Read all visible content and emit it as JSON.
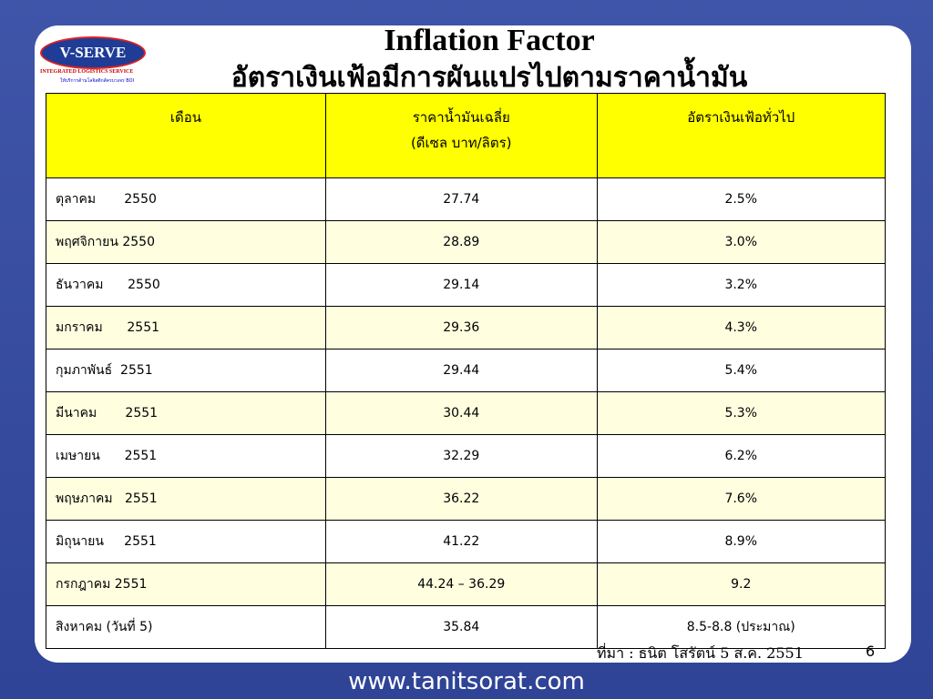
{
  "logo": {
    "name": "V-SERVE",
    "tagline": "INTEGRATED LOGISTICS SERVICE",
    "subline": "ให้บริการด้านโลจิสติกส์ครบวงจร BOI"
  },
  "header": {
    "title": "Inflation Factor",
    "subtitle": "อัตราเงินเฟ้อมีการผันแปรไปตามราคาน้ำมัน"
  },
  "table": {
    "columns": [
      [
        "เดือน"
      ],
      [
        "ราคาน้ำมันเฉลี่ย",
        "(ดีเซล บาท/ลิตร)"
      ],
      [
        "อัตราเงินเฟ้อทั่วไป"
      ]
    ],
    "rows": [
      [
        "ตุลาคม       2550",
        "27.74",
        "2.5%"
      ],
      [
        "พฤศจิกายน 2550",
        "28.89",
        "3.0%"
      ],
      [
        "ธันวาคม      2550",
        "29.14",
        "3.2%"
      ],
      [
        "มกราคม      2551",
        "29.36",
        "4.3%"
      ],
      [
        "กุมภาพันธ์  2551",
        "29.44",
        "5.4%"
      ],
      [
        "มีนาคม       2551",
        "30.44",
        "5.3%"
      ],
      [
        "เมษายน      2551",
        "32.29",
        "6.2%"
      ],
      [
        "พฤษภาคม   2551",
        "36.22",
        "7.6%"
      ],
      [
        "มิถุนายน     2551",
        "41.22",
        "8.9%"
      ],
      [
        "กรกฎาคม 2551",
        "44.24 – 36.29",
        "9.2"
      ],
      [
        "สิงหาคม (วันที่ 5)",
        "35.84",
        "8.5-8.8 (ประมาณ)"
      ]
    ]
  },
  "footer": {
    "source": "ที่มา : ธนิต โสรัตน์ 5 ส.ค. 2551",
    "page": "6",
    "website": "www.tanitsorat.com"
  }
}
